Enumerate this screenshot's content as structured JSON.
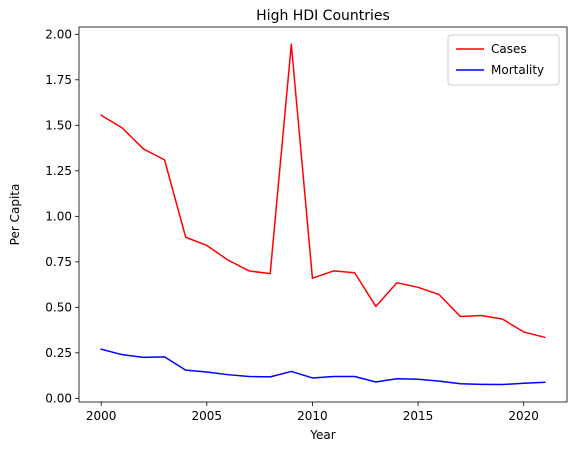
{
  "chart_data": {
    "type": "line",
    "title": "High HDI Countries",
    "xlabel": "Year",
    "ylabel": "Per Capita",
    "x": [
      2000,
      2001,
      2002,
      2003,
      2004,
      2005,
      2006,
      2007,
      2008,
      2009,
      2010,
      2011,
      2012,
      2013,
      2014,
      2015,
      2016,
      2017,
      2018,
      2019,
      2020,
      2021
    ],
    "xlim": [
      1998.95,
      2022.05
    ],
    "ylim": [
      -0.02,
      2.04
    ],
    "xticks": [
      2000,
      2005,
      2010,
      2015,
      2020
    ],
    "yticks": [
      0.0,
      0.25,
      0.5,
      0.75,
      1.0,
      1.25,
      1.5,
      1.75,
      2.0
    ],
    "ytick_labels": [
      "0.00",
      "0.25",
      "0.50",
      "0.75",
      "1.00",
      "1.25",
      "1.50",
      "1.75",
      "2.00"
    ],
    "grid": false,
    "legend_position": "top-right",
    "series": [
      {
        "name": "Cases",
        "color": "#ff0000",
        "values": [
          1.555,
          1.485,
          1.37,
          1.31,
          0.885,
          0.84,
          0.76,
          0.7,
          0.685,
          1.945,
          0.66,
          0.7,
          0.69,
          0.505,
          0.635,
          0.61,
          0.57,
          0.45,
          0.455,
          0.435,
          0.365,
          0.335
        ]
      },
      {
        "name": "Mortality",
        "color": "#0000ff",
        "values": [
          0.27,
          0.24,
          0.225,
          0.228,
          0.155,
          0.145,
          0.13,
          0.12,
          0.118,
          0.148,
          0.112,
          0.12,
          0.12,
          0.09,
          0.108,
          0.105,
          0.095,
          0.08,
          0.077,
          0.076,
          0.083,
          0.088
        ]
      }
    ]
  }
}
